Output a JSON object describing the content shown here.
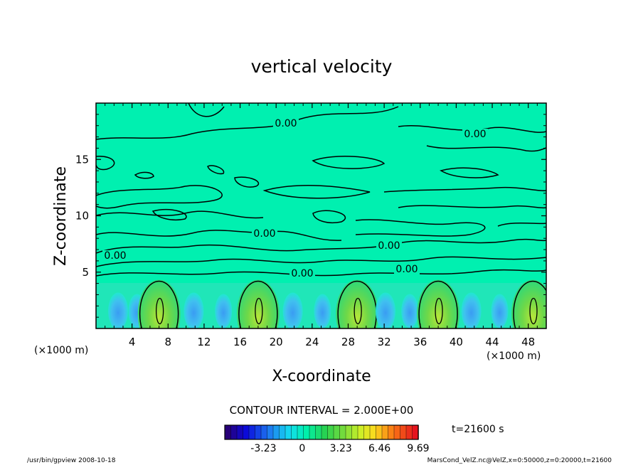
{
  "chart_data": {
    "type": "heatmap",
    "title": "vertical velocity",
    "xlabel": "X-coordinate",
    "ylabel": "Z-coordinate",
    "x_unit": "(×1000 m)",
    "y_unit": "(×1000 m)",
    "xlim": [
      0,
      50
    ],
    "ylim": [
      0,
      20
    ],
    "x_ticks": [
      "4",
      "8",
      "12",
      "16",
      "20",
      "24",
      "28",
      "32",
      "36",
      "40",
      "44",
      "48"
    ],
    "y_ticks": [
      "5",
      "10",
      "15"
    ],
    "contour_interval_label": "CONTOUR INTERVAL = 2.000E+00",
    "contour_labels": [
      "0.00",
      "0.00",
      "0.00",
      "0.00",
      "0.00",
      "0.00",
      "0.00"
    ],
    "colorbar": {
      "ticks": [
        "-3.23",
        "0",
        "3.23",
        "6.46",
        "9.69"
      ],
      "min": -6.46,
      "max": 9.69,
      "levels": 32
    },
    "updraft_centers_x": [
      7,
      18,
      29,
      38,
      48.5
    ],
    "updraft_peak_z": 1.8,
    "time_label": "t=21600 s",
    "colors": {
      "background_field": "#00f0b0",
      "updraft": "#74d74a",
      "downdraft": "#40a8f0"
    }
  },
  "footer": {
    "left": "/usr/bin/gpview   2008-10-18",
    "right": "MarsCond_VelZ.nc@VelZ,x=0:50000,z=0:20000,t=21600"
  }
}
